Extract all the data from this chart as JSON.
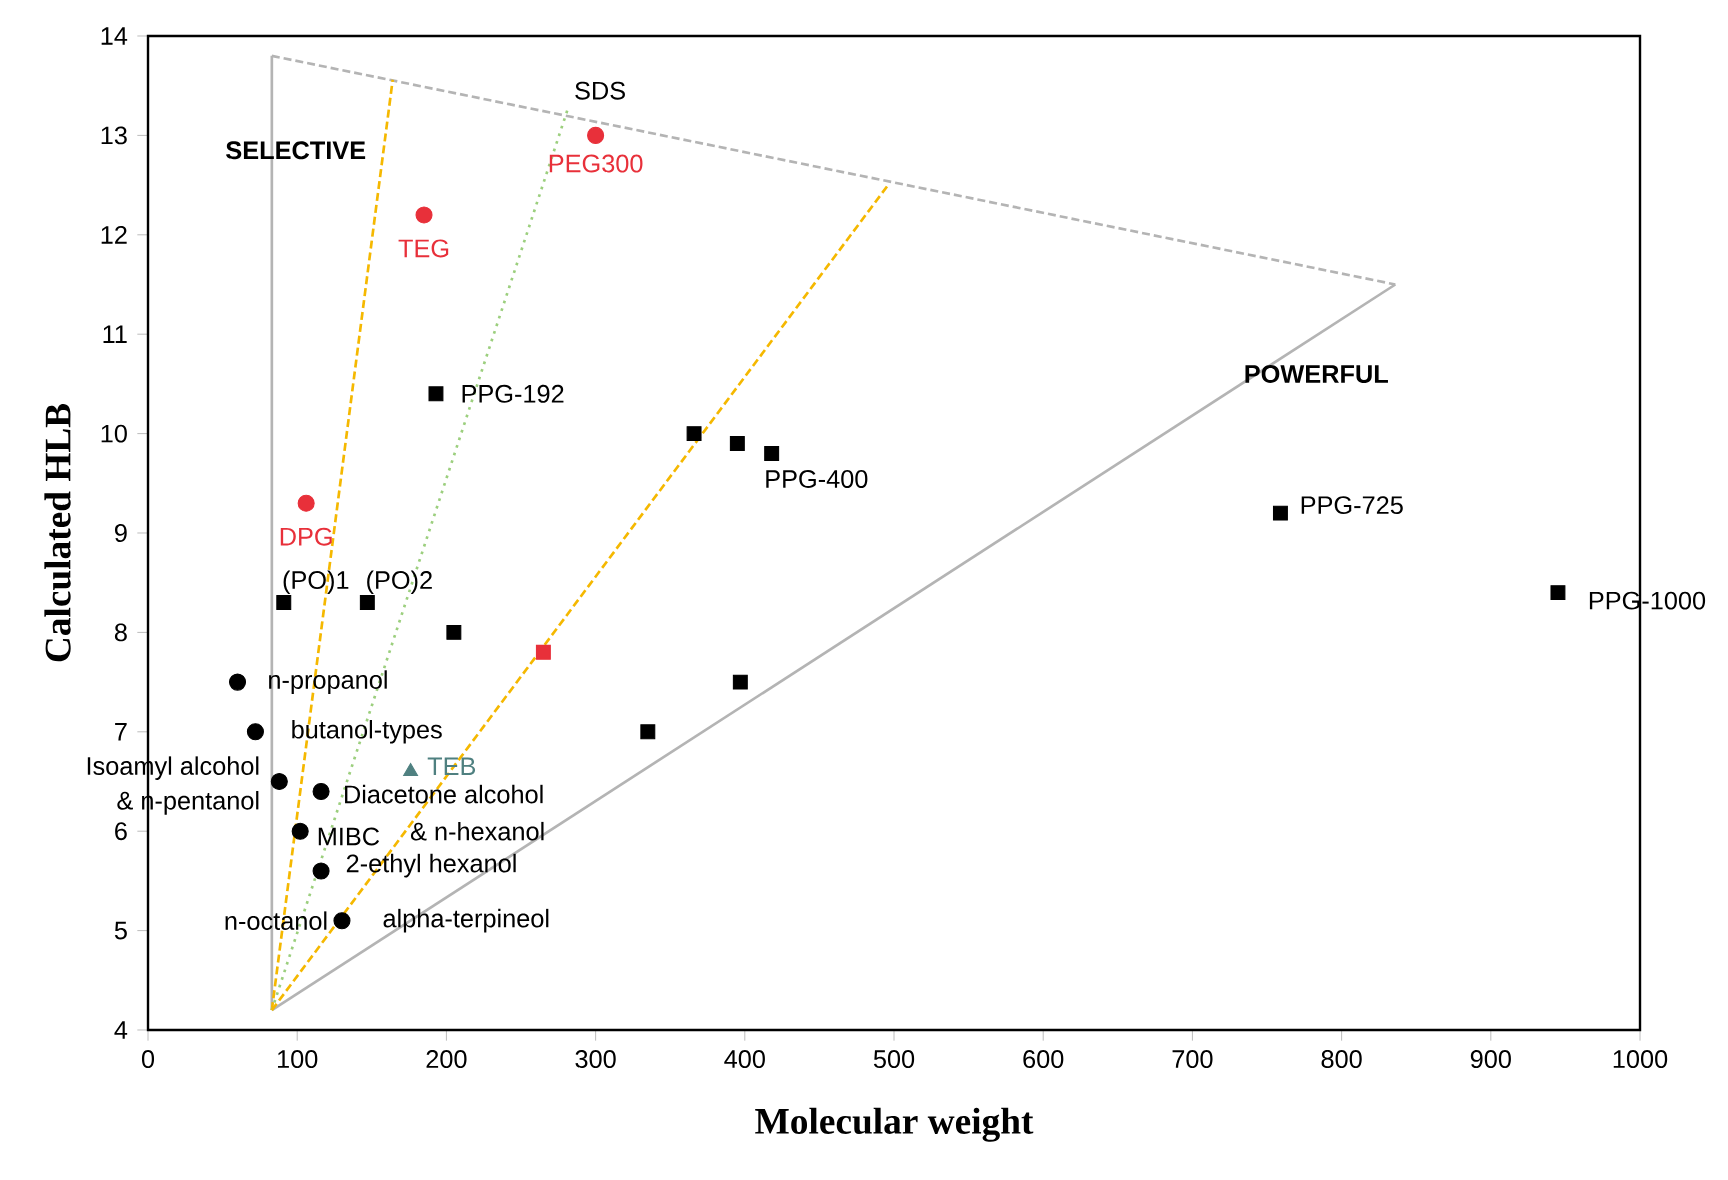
{
  "chart_data": {
    "type": "scatter",
    "xlabel": "Molecular weight",
    "ylabel": "Calculated HLB",
    "xlim": [
      0,
      1000
    ],
    "ylim": [
      4,
      14
    ],
    "xticks": [
      0,
      100,
      200,
      300,
      400,
      500,
      600,
      700,
      800,
      900,
      1000
    ],
    "yticks": [
      4,
      5,
      6,
      7,
      8,
      9,
      10,
      11,
      12,
      13,
      14
    ],
    "grid": false,
    "series": [
      {
        "type": "scatter",
        "marker": "circle",
        "color": "#000000",
        "x": [
          60,
          72,
          88,
          116,
          102,
          116,
          130
        ],
        "values": [
          7.5,
          7.0,
          6.5,
          6.4,
          6.0,
          5.6,
          5.1
        ]
      },
      {
        "type": "scatter",
        "marker": "square",
        "color": "#000000",
        "x": [
          91,
          147,
          205,
          397,
          335
        ],
        "values": [
          8.3,
          8.3,
          8.0,
          7.5,
          7.0
        ]
      },
      {
        "type": "scatter",
        "marker": "square",
        "color": "#000000",
        "x": [
          193,
          366,
          395,
          418,
          759,
          945
        ],
        "values": [
          10.4,
          10.0,
          9.9,
          9.8,
          9.2,
          8.4
        ]
      },
      {
        "type": "scatter",
        "marker": "circle",
        "color": "#e8303a",
        "x": [
          300,
          185,
          106
        ],
        "values": [
          13.0,
          12.2,
          9.3
        ]
      },
      {
        "type": "scatter",
        "marker": "triangle",
        "color": "#4f8080",
        "x": [
          176
        ],
        "values": [
          6.6
        ]
      },
      {
        "type": "scatter",
        "marker": "square",
        "color": "#e8303a",
        "x": [
          265
        ],
        "values": [
          7.8
        ]
      },
      {
        "type": "line",
        "marker": "none",
        "line_style": "solid",
        "color": "#b4b4b4",
        "x": [
          83,
          83
        ],
        "values": [
          4.2,
          13.8
        ]
      },
      {
        "type": "line",
        "marker": "none",
        "line_style": "dashed",
        "color": "#b4b4b4",
        "x": [
          83,
          836
        ],
        "values": [
          13.8,
          11.5
        ]
      },
      {
        "type": "line",
        "marker": "none",
        "line_style": "solid",
        "color": "#b4b4b4",
        "x": [
          83,
          836
        ],
        "values": [
          4.2,
          11.5
        ]
      },
      {
        "type": "line",
        "marker": "none",
        "line_style": "dashed",
        "color": "#f5b800",
        "x": [
          83,
          164
        ],
        "values": [
          4.2,
          13.56
        ]
      },
      {
        "type": "line",
        "marker": "none",
        "line_style": "dotted",
        "color": "#9ccf7e",
        "x": [
          83,
          281
        ],
        "values": [
          4.2,
          13.25
        ]
      },
      {
        "type": "line",
        "marker": "none",
        "line_style": "dashed",
        "color": "#f5b800",
        "x": [
          83,
          496
        ],
        "values": [
          4.2,
          12.5
        ]
      }
    ],
    "annotations": [
      {
        "text": "PEG300",
        "x": 300,
        "y": 13.0
      },
      {
        "text": "TEG",
        "x": 185,
        "y": 12.2
      },
      {
        "text": "DPG",
        "x": 106,
        "y": 9.3
      },
      "SDS",
      {
        "text": "PPG-192",
        "x": 193,
        "y": 10.4
      },
      {
        "text": "PPG-400",
        "x": 418,
        "y": 9.8
      },
      {
        "text": "PPG-725",
        "x": 759,
        "y": 9.2
      },
      {
        "text": "PPG-1000",
        "x": 945,
        "y": 8.4
      },
      {
        "text": "(PO)1",
        "x": 91,
        "y": 8.3
      },
      {
        "text": "(PO)2",
        "x": 147,
        "y": 8.3
      },
      {
        "text": "n-propanol",
        "x": 60,
        "y": 7.5
      },
      {
        "text": "butanol-types",
        "x": 72,
        "y": 7.0
      },
      {
        "text": "Isoamyl alcohol",
        "x": 88,
        "y": 6.5
      },
      {
        "text": "& n-pentanol",
        "x": 88,
        "y": 6.5
      },
      {
        "text": "TEB",
        "x": 176,
        "y": 6.6
      },
      {
        "text": "Diacetone alcohol",
        "x": 116,
        "y": 6.4
      },
      {
        "text": "MIBC",
        "x": 102,
        "y": 6.0
      },
      "& n-hexanol",
      {
        "text": "2-ethyl hexanol",
        "x": 116,
        "y": 5.6
      },
      {
        "text": "n-octanol",
        "x": 130,
        "y": 5.1
      },
      "alpha-terpineol",
      "SELECTIVE",
      "POWERFUL"
    ]
  }
}
